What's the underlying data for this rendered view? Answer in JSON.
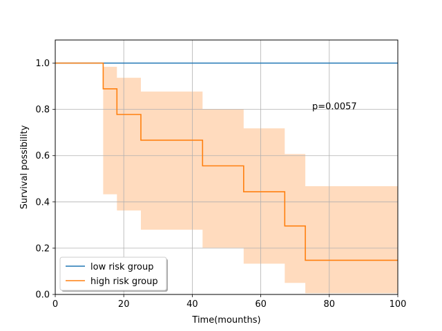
{
  "chart_data": {
    "type": "line",
    "title": "",
    "xlabel": "Time(mounths)",
    "ylabel": "Survival possibility",
    "xlim": [
      0,
      100
    ],
    "ylim": [
      0,
      1.1
    ],
    "xticks": [
      0,
      20,
      40,
      60,
      80,
      100
    ],
    "xtick_labels": [
      "0",
      "20",
      "40",
      "60",
      "80",
      "100"
    ],
    "yticks": [
      0.0,
      0.2,
      0.4,
      0.6,
      0.8,
      1.0
    ],
    "ytick_labels": [
      "0.0",
      "0.2",
      "0.4",
      "0.6",
      "0.8",
      "1.0"
    ],
    "grid": true,
    "legend_position": "lower-left",
    "annotation": {
      "text": "p=0.0057",
      "x": 75,
      "y": 0.8
    },
    "series": [
      {
        "name": "low risk group",
        "color": "#1f77b4",
        "step": true,
        "x": [
          0,
          100
        ],
        "y": [
          1.0,
          1.0
        ]
      },
      {
        "name": "high risk group",
        "color": "#ff7f0e",
        "step": true,
        "x": [
          0,
          14,
          18,
          25,
          43,
          55,
          67,
          73,
          100
        ],
        "y": [
          1.0,
          0.889,
          0.778,
          0.667,
          0.556,
          0.444,
          0.296,
          0.148,
          0.148
        ],
        "ci_color": "#ffdbbe",
        "ci_lower": [
          1.0,
          0.433,
          0.363,
          0.28,
          0.202,
          0.133,
          0.05,
          0.005,
          0.005
        ],
        "ci_upper": [
          1.0,
          0.984,
          0.937,
          0.877,
          0.802,
          0.718,
          0.607,
          0.468,
          0.468
        ]
      }
    ]
  }
}
